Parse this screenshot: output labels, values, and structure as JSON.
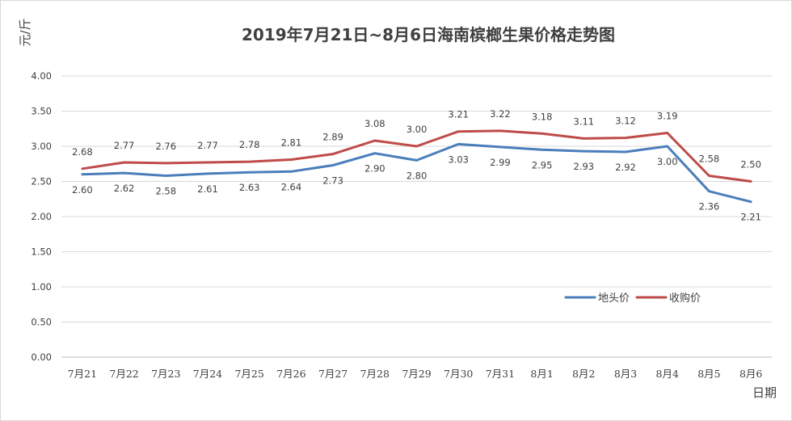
{
  "chart_data": {
    "type": "line",
    "title": "2019年7月21日~8月6日海南槟榔生果价格走势图",
    "xlabel": "日期",
    "ylabel": "元/斤",
    "categories": [
      "7月21",
      "7月22",
      "7月23",
      "7月24",
      "7月25",
      "7月26",
      "7月27",
      "7月28",
      "7月29",
      "7月30",
      "7月31",
      "8月1",
      "8月2",
      "8月3",
      "8月4",
      "8月5",
      "8月6"
    ],
    "ylim": [
      0,
      4
    ],
    "yticks": [
      "0.00",
      "0.50",
      "1.00",
      "1.50",
      "2.00",
      "2.50",
      "3.00",
      "3.50",
      "4.00"
    ],
    "grid": true,
    "legend_position": "right",
    "series": [
      {
        "name": "地头价",
        "color": "#4a7ebb",
        "values": [
          2.6,
          2.62,
          2.58,
          2.61,
          2.63,
          2.64,
          2.73,
          2.9,
          2.8,
          3.03,
          2.99,
          2.95,
          2.93,
          2.92,
          3.0,
          2.36,
          2.21
        ],
        "labels": [
          "2.60",
          "2.62",
          "2.58",
          "2.61",
          "2.63",
          "2.64",
          "2.73",
          "2.90",
          "2.80",
          "3.03",
          "2.99",
          "2.95",
          "2.93",
          "2.92",
          "3.00",
          "2.36",
          "2.21"
        ]
      },
      {
        "name": "收购价",
        "color": "#be4b48",
        "values": [
          2.68,
          2.77,
          2.76,
          2.77,
          2.78,
          2.81,
          2.89,
          3.08,
          3.0,
          3.21,
          3.22,
          3.18,
          3.11,
          3.12,
          3.19,
          2.58,
          2.5
        ],
        "labels": [
          "2.68",
          "2.77",
          "2.76",
          "2.77",
          "2.78",
          "2.81",
          "2.89",
          "3.08",
          "3.00",
          "3.21",
          "3.22",
          "3.18",
          "3.11",
          "3.12",
          "3.19",
          "2.58",
          "2.50"
        ]
      }
    ]
  }
}
